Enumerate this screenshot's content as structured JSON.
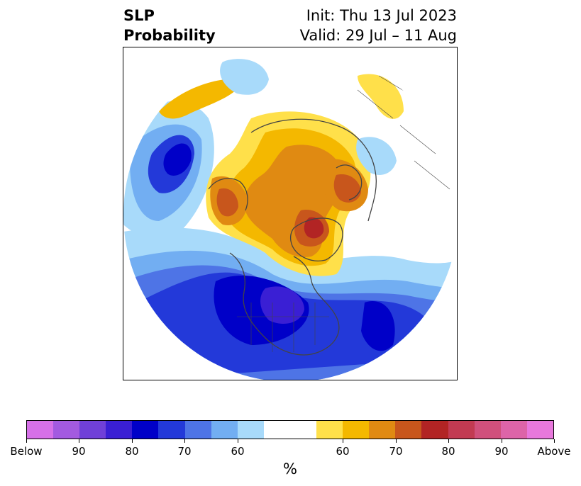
{
  "header": {
    "title_line1": "SLP",
    "title_line2": "Probability",
    "init": "Init: Thu 13 Jul 2023",
    "valid": "Valid: 29 Jul – 11 Aug"
  },
  "colorbar": {
    "colors": [
      "#d670e8",
      "#a35ae0",
      "#7040d8",
      "#3a1fd4",
      "#0000c8",
      "#2339d9",
      "#4e74e6",
      "#72aef2",
      "#a8dafa",
      "#ffffff",
      "#ffffff",
      "#ffe04a",
      "#f4b800",
      "#e08a12",
      "#c8561c",
      "#b22424",
      "#c23a52",
      "#d0507c",
      "#dd64a8",
      "#e878dc"
    ],
    "labels": [
      "Below",
      "90",
      "80",
      "70",
      "60",
      "60",
      "70",
      "80",
      "90",
      "Above"
    ],
    "unit": "%"
  },
  "map": {
    "projection": "polar-stereographic-north",
    "palette": {
      "blue_light": "#a8dafa",
      "blue_mid": "#72aef2",
      "blue_med": "#4e74e6",
      "blue_strong": "#2339d9",
      "blue_deep": "#0000c8",
      "indigo": "#3a1fd4",
      "yellow": "#ffe04a",
      "gold": "#f4b800",
      "orange": "#e08a12",
      "rust": "#c8561c",
      "red": "#b22424",
      "coast": "#444444"
    }
  }
}
